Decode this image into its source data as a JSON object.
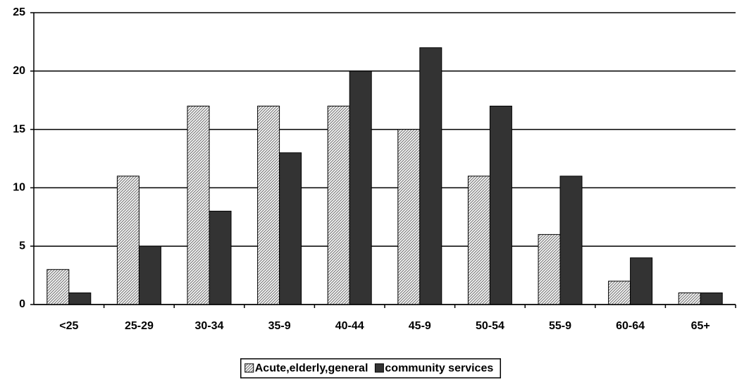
{
  "chart_data": {
    "type": "bar",
    "categories": [
      "<25",
      "25-29",
      "30-34",
      "35-9",
      "40-44",
      "45-9",
      "50-54",
      "55-9",
      "60-64",
      "65+"
    ],
    "series": [
      {
        "name": "Acute,elderly,general",
        "color": "#808080",
        "hatch": true,
        "values": [
          3,
          11,
          17,
          17,
          17,
          15,
          11,
          6,
          2,
          1
        ]
      },
      {
        "name": "community services",
        "color": "#333333",
        "hatch": false,
        "values": [
          1,
          5,
          8,
          13,
          20,
          22,
          17,
          11,
          4,
          1
        ]
      }
    ],
    "ylim": [
      0,
      25
    ],
    "yticks": [
      0,
      5,
      10,
      15,
      20,
      25
    ],
    "grid": true,
    "legend": "bottom"
  }
}
